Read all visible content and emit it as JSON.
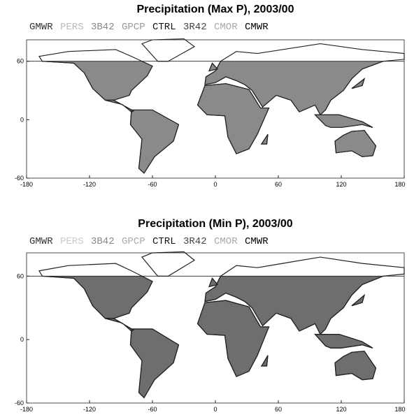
{
  "panels": [
    {
      "title": "Precipitation (Max P), 2003/00",
      "legend": [
        {
          "name": "GMWR",
          "color": "#333333"
        },
        {
          "name": "PERS",
          "color": "#bbbbbb"
        },
        {
          "name": "3B42",
          "color": "#888888"
        },
        {
          "name": "GPCP",
          "color": "#999999"
        },
        {
          "name": "CTRL",
          "color": "#111111"
        },
        {
          "name": "3R42",
          "color": "#444444"
        },
        {
          "name": "CMOR",
          "color": "#aaaaaa"
        },
        {
          "name": "CMWR",
          "color": "#000000"
        }
      ],
      "xticks": [
        -180,
        -120,
        -60,
        0,
        60,
        120,
        180
      ],
      "yticks": [
        -60,
        0,
        60
      ]
    },
    {
      "title": "Precipitation (Min P), 2003/00",
      "legend": [
        {
          "name": "GMWR",
          "color": "#333333"
        },
        {
          "name": "PERS",
          "color": "#cccccc"
        },
        {
          "name": "3B42",
          "color": "#888888"
        },
        {
          "name": "GPCP",
          "color": "#aaaaaa"
        },
        {
          "name": "CTRL",
          "color": "#111111"
        },
        {
          "name": "3R42",
          "color": "#444444"
        },
        {
          "name": "CMOR",
          "color": "#aaaaaa"
        },
        {
          "name": "CMWR",
          "color": "#000000"
        }
      ],
      "xticks": [
        -180,
        -120,
        -60,
        0,
        60,
        120,
        180
      ],
      "yticks": [
        -60,
        0,
        60
      ]
    }
  ]
}
